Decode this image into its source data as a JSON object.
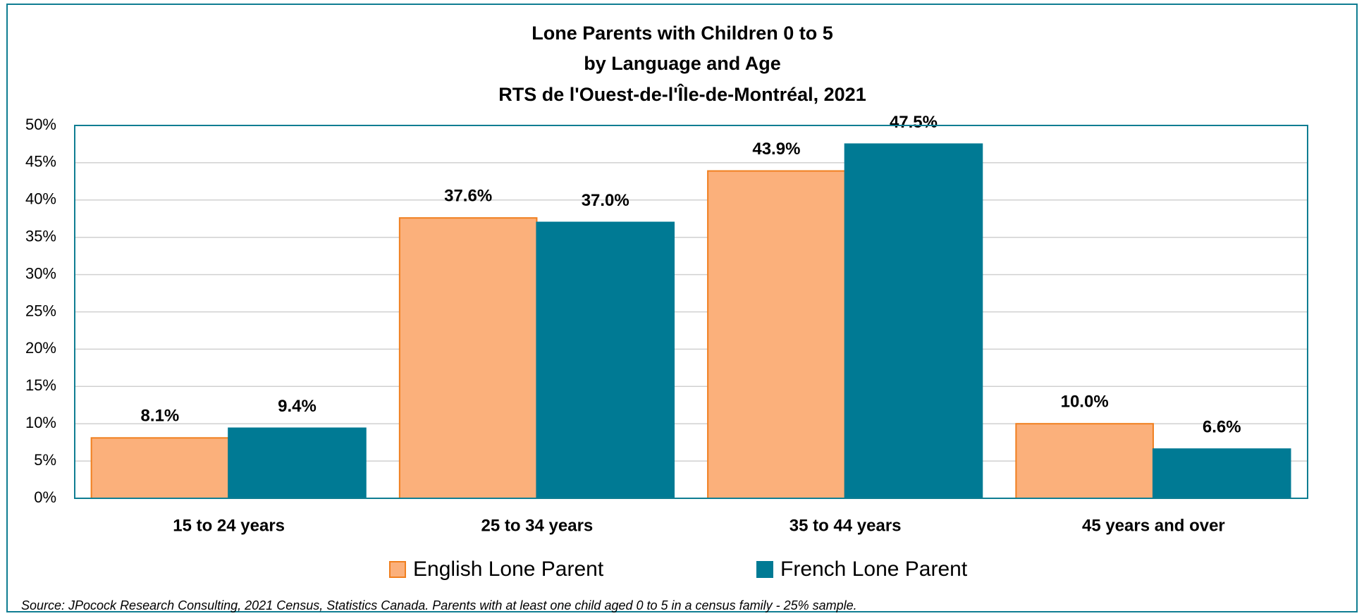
{
  "chart_data": {
    "type": "bar",
    "title": [
      "Lone Parents with Children 0 to 5",
      "by Language and Age",
      "RTS de l'Ouest-de-l'Île-de-Montréal, 2021"
    ],
    "categories": [
      "15 to 24 years",
      "25 to 34 years",
      "35 to 44 years",
      "45 years and over"
    ],
    "series": [
      {
        "name": "English Lone Parent",
        "color": "#fbb07b",
        "edge": "#f07f1f",
        "values": [
          8.1,
          37.6,
          43.9,
          10.0
        ],
        "value_labels": [
          "8.1%",
          "37.6%",
          "43.9%",
          "10.0%"
        ]
      },
      {
        "name": "French Lone Parent",
        "color": "#007a94",
        "edge": "#007a94",
        "values": [
          9.4,
          37.0,
          47.5,
          6.6
        ],
        "value_labels": [
          "9.4%",
          "37.0%",
          "47.5%",
          "6.6%"
        ]
      }
    ],
    "ylim": [
      0,
      50
    ],
    "yticks": [
      {
        "value": 0,
        "label": "0%"
      },
      {
        "value": 5,
        "label": "5%"
      },
      {
        "value": 10,
        "label": "10%"
      },
      {
        "value": 15,
        "label": "15%"
      },
      {
        "value": 20,
        "label": "20%"
      },
      {
        "value": 25,
        "label": "25%"
      },
      {
        "value": 30,
        "label": "30%"
      },
      {
        "value": 35,
        "label": "35%"
      },
      {
        "value": 40,
        "label": "40%"
      },
      {
        "value": 45,
        "label": "45%"
      },
      {
        "value": 50,
        "label": "50%"
      }
    ],
    "grid": true,
    "legend": "bottom",
    "source": "Source: JPocock Research Consulting, 2021 Census, Statistics Canada. Parents with at least one child aged 0 to 5 in a census family - 25% sample."
  }
}
